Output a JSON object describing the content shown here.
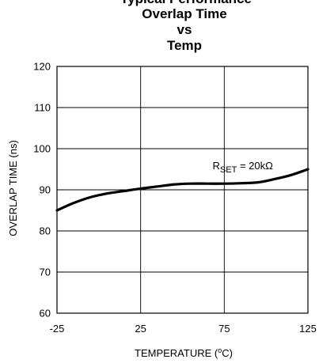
{
  "chart_data": {
    "type": "line",
    "title_lines": [
      "Typical Performance",
      "Overlap Time",
      "vs",
      "Temp"
    ],
    "xlabel": "TEMPERATURE (",
    "xlabel_sup": "o",
    "xlabel_unit": "C)",
    "ylabel": "OVERLAP TIME (ns)",
    "xlim": [
      -25,
      125
    ],
    "ylim": [
      60,
      120
    ],
    "xticks": [
      -25,
      25,
      75,
      125
    ],
    "yticks": [
      60,
      70,
      80,
      90,
      100,
      110,
      120
    ],
    "grid": true,
    "series": [
      {
        "x": [
          -25,
          -15,
          -5,
          5,
          15,
          25,
          35,
          45,
          55,
          65,
          75,
          85,
          95,
          105,
          115,
          125
        ],
        "y": [
          85,
          86.8,
          88.2,
          89.1,
          89.7,
          90.3,
          90.8,
          91.3,
          91.5,
          91.5,
          91.5,
          91.6,
          91.8,
          92.6,
          93.6,
          95
        ]
      }
    ],
    "annotations": [
      {
        "main": "R",
        "sub": "SET",
        "rest": " = 20kΩ",
        "x": 68,
        "y": 96
      }
    ]
  }
}
